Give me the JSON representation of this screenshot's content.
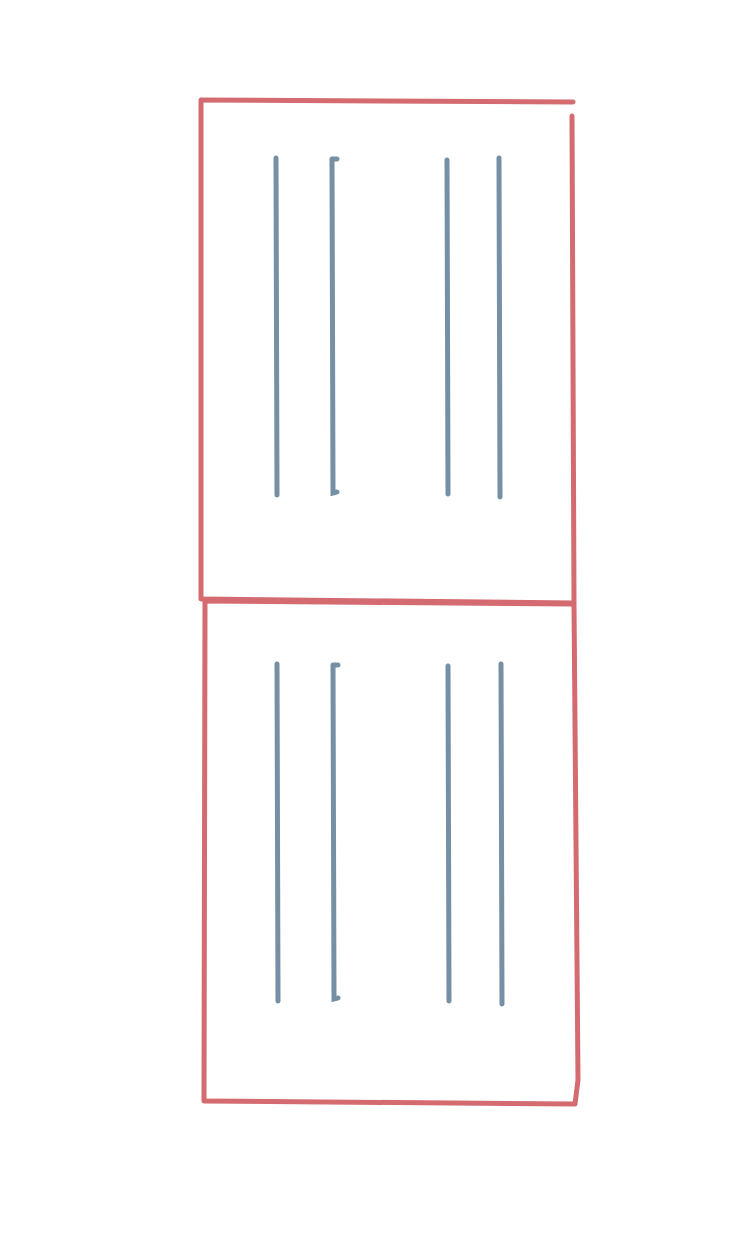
{
  "colors": {
    "background": "#ffffff",
    "frame": "#d46b70",
    "line": "#7590a5"
  },
  "panels": [
    {
      "name": "top-panel",
      "vertical_lines": 4
    },
    {
      "name": "bottom-panel",
      "vertical_lines": 4
    }
  ]
}
